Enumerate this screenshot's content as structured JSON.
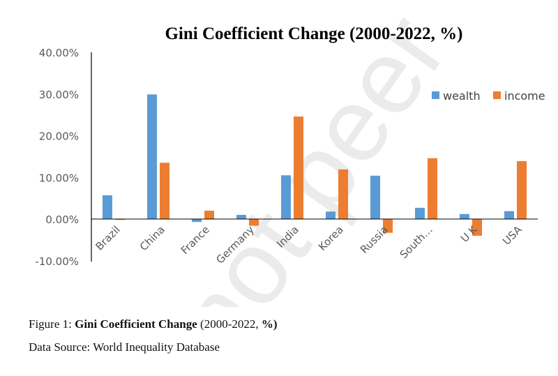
{
  "chart_data": {
    "type": "bar",
    "title": "Gini Coefficient Change (2000-2022, %)",
    "xlabel": "",
    "ylabel": "",
    "ylim": [
      -10,
      40
    ],
    "yticks": [
      "40.00%",
      "30.00%",
      "20.00%",
      "10.00%",
      "0.00%",
      "-10.00%"
    ],
    "ytick_values": [
      40,
      30,
      20,
      10,
      0,
      -10
    ],
    "categories": [
      "Brazil",
      "China",
      "France",
      "Germany",
      "India",
      "Korea",
      "Russia",
      "South…",
      "U K",
      "USA"
    ],
    "series": [
      {
        "name": "wealth",
        "color": "#5b9bd5",
        "values": [
          5.7,
          29.9,
          -0.7,
          1.0,
          10.5,
          1.8,
          10.4,
          2.7,
          1.2,
          1.9
        ]
      },
      {
        "name": "income",
        "color": "#ed7d31",
        "values": [
          -0.2,
          13.5,
          2.0,
          -1.6,
          24.6,
          11.9,
          -3.3,
          14.6,
          -4.0,
          13.9
        ]
      }
    ],
    "grid": false,
    "legend_position": "top-right"
  },
  "caption": {
    "figure_label": "Figure 1: ",
    "title_bold": "Gini Coefficient Change",
    "paren_open": " (",
    "years": "2000-2022, ",
    "percent_bold": "%)",
    "source": "Data Source: World Inequality Database"
  },
  "watermark": "not peer"
}
